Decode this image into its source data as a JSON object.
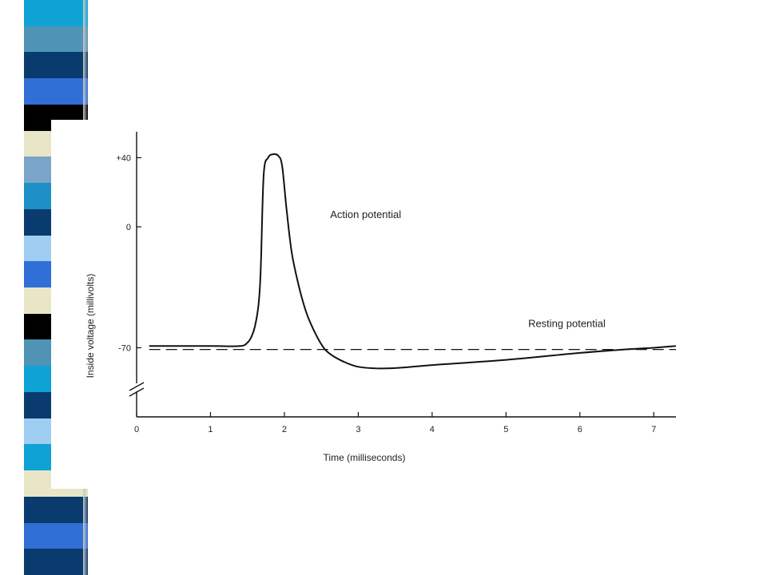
{
  "decoration": {
    "stripe_colors": [
      "#0ea3d4",
      "#4f93b5",
      "#0a3b6e",
      "#2f6fd6",
      "#000000",
      "#e8e6c6",
      "#7aa4c8",
      "#1e90c8",
      "#0a3b6e",
      "#9fcef2",
      "#2f6fd6",
      "#e8e6c6",
      "#000000",
      "#4f93b5",
      "#0ea3d4",
      "#0a3b6e",
      "#9fcef2",
      "#0ea3d4",
      "#e8e6c6",
      "#0a3b6e",
      "#2f6fd6",
      "#0a3b6e"
    ]
  },
  "chart_data": {
    "type": "line",
    "title": "",
    "xlabel": "Time (milliseconds)",
    "ylabel": "Inside voltage (millivolts)",
    "xlim": [
      0,
      7.3
    ],
    "ylim": [
      -110,
      55
    ],
    "y_axis_break": true,
    "grid": false,
    "x_ticks": [
      0,
      1,
      2,
      3,
      4,
      5,
      6,
      7
    ],
    "x_tick_labels": [
      "0",
      "1",
      "2",
      "3",
      "4",
      "5",
      "6",
      "7"
    ],
    "y_ticks": [
      40,
      0,
      -70
    ],
    "y_tick_labels": [
      "+40",
      "0",
      "-70"
    ],
    "series": [
      {
        "style": "solid",
        "color": "#111111",
        "x": [
          0.17,
          1.0,
          1.4,
          1.5,
          1.55,
          1.6,
          1.65,
          1.68,
          1.72,
          1.78,
          1.85,
          1.92,
          1.97,
          2.03,
          2.1,
          2.2,
          2.3,
          2.4,
          2.5,
          2.6,
          2.8,
          3.0,
          3.3,
          3.6,
          4.0,
          5.0,
          6.0,
          6.6,
          7.0,
          7.3
        ],
        "y": [
          -69,
          -69,
          -69,
          -67,
          -64,
          -58,
          -45,
          -25,
          30,
          40,
          42,
          41,
          35,
          10,
          -15,
          -35,
          -50,
          -60,
          -68,
          -73,
          -78,
          -81,
          -82,
          -81.5,
          -80,
          -77,
          -73,
          -71,
          -70,
          -69
        ]
      },
      {
        "style": "dashed",
        "color": "#111111",
        "x": [
          0.17,
          7.3
        ],
        "y": [
          -71,
          -71
        ]
      }
    ],
    "annotations": [
      {
        "text": "Action potential",
        "x": 2.62,
        "y": 5
      },
      {
        "text": "Resting potential",
        "x": 5.3,
        "y": -58
      }
    ]
  }
}
